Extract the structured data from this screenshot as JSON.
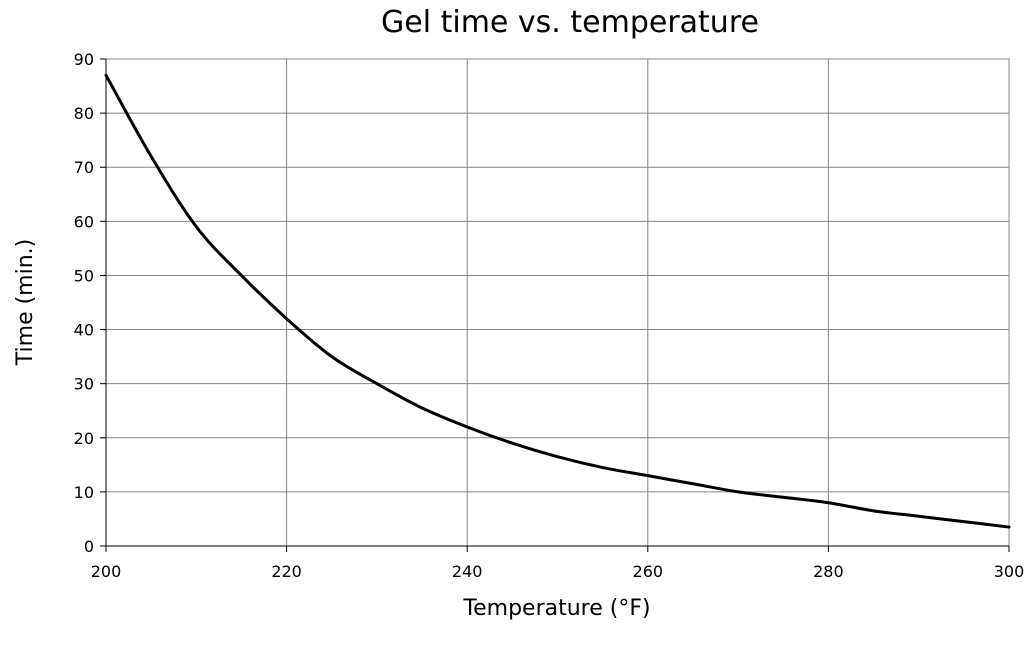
{
  "chart_data": {
    "type": "line",
    "title": "Gel time vs. temperature",
    "xlabel": "Temperature (°F)",
    "ylabel": "Time (min.)",
    "xlim": [
      200,
      300
    ],
    "ylim": [
      0,
      90
    ],
    "xticks": [
      200,
      220,
      240,
      260,
      280,
      300
    ],
    "yticks": [
      0,
      10,
      20,
      30,
      40,
      50,
      60,
      70,
      80,
      90
    ],
    "grid": true,
    "series": [
      {
        "color": "#000000",
        "x": [
          200,
          205,
          210,
          215,
          220,
          225,
          230,
          235,
          240,
          245,
          250,
          255,
          260,
          265,
          270,
          275,
          280,
          285,
          290,
          295,
          300
        ],
        "y": [
          87,
          72,
          59,
          50,
          42,
          35,
          30,
          25.5,
          22,
          19,
          16.5,
          14.5,
          13,
          11.5,
          10,
          9,
          8,
          6.5,
          5.5,
          4.5,
          3.5
        ]
      }
    ]
  }
}
